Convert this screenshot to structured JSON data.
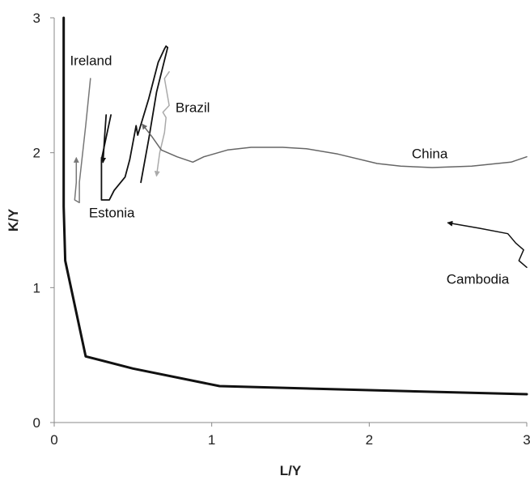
{
  "chart_data": {
    "type": "line",
    "xlabel": "L/Y",
    "ylabel": "K/Y",
    "xlim": [
      0,
      3
    ],
    "ylim": [
      0,
      3
    ],
    "x_ticks": [
      0,
      1,
      2,
      3
    ],
    "y_ticks": [
      0,
      1,
      2,
      3
    ],
    "grid": false,
    "legend": "none",
    "series": [
      {
        "name": "",
        "color": "#111111",
        "width": 3,
        "arrow": "none",
        "points": [
          [
            0.06,
            3.0
          ],
          [
            0.06,
            1.6
          ],
          [
            0.07,
            1.2
          ],
          [
            0.2,
            0.49
          ],
          [
            0.5,
            0.4
          ],
          [
            1.05,
            0.27
          ],
          [
            2.0,
            0.24
          ],
          [
            3.0,
            0.21
          ]
        ]
      },
      {
        "name": "Ireland",
        "color": "#777777",
        "width": 1.5,
        "arrow": "end",
        "points": [
          [
            0.23,
            2.55
          ],
          [
            0.2,
            2.2
          ],
          [
            0.16,
            1.78
          ],
          [
            0.16,
            1.63
          ],
          [
            0.13,
            1.65
          ],
          [
            0.14,
            1.78
          ],
          [
            0.14,
            1.96
          ]
        ]
      },
      {
        "name": "Estonia",
        "color": "#111111",
        "width": 1.8,
        "arrow": "none",
        "points": [
          [
            0.36,
            2.28
          ],
          [
            0.3,
            1.95
          ],
          [
            0.3,
            1.65
          ],
          [
            0.35,
            1.65
          ],
          [
            0.38,
            1.72
          ],
          [
            0.45,
            1.82
          ],
          [
            0.48,
            1.95
          ],
          [
            0.52,
            2.2
          ],
          [
            0.53,
            2.13
          ],
          [
            0.6,
            2.4
          ],
          [
            0.66,
            2.67
          ],
          [
            0.7,
            2.77
          ],
          [
            0.71,
            2.79
          ],
          [
            0.72,
            2.78
          ],
          [
            0.65,
            2.45
          ],
          [
            0.6,
            2.1
          ],
          [
            0.55,
            1.78
          ]
        ]
      },
      {
        "name": "",
        "color": "#111111",
        "width": 1.8,
        "arrow": "end",
        "points": [
          [
            0.33,
            2.28
          ],
          [
            0.32,
            2.12
          ],
          [
            0.31,
            1.93
          ]
        ]
      },
      {
        "name": "Brazil",
        "color": "#aaaaaa",
        "width": 1.5,
        "arrow": "end",
        "points": [
          [
            0.73,
            2.6
          ],
          [
            0.7,
            2.55
          ],
          [
            0.73,
            2.35
          ],
          [
            0.69,
            2.3
          ],
          [
            0.71,
            2.26
          ],
          [
            0.7,
            2.15
          ],
          [
            0.67,
            2.0
          ],
          [
            0.65,
            1.83
          ]
        ]
      },
      {
        "name": "China",
        "color": "#666666",
        "width": 1.5,
        "arrow": "end",
        "points": [
          [
            3.0,
            1.97
          ],
          [
            2.9,
            1.93
          ],
          [
            2.65,
            1.9
          ],
          [
            2.4,
            1.89
          ],
          [
            2.2,
            1.9
          ],
          [
            2.05,
            1.92
          ],
          [
            1.8,
            1.99
          ],
          [
            1.6,
            2.03
          ],
          [
            1.45,
            2.04
          ],
          [
            1.25,
            2.04
          ],
          [
            1.1,
            2.02
          ],
          [
            0.95,
            1.97
          ],
          [
            0.88,
            1.93
          ],
          [
            0.78,
            1.97
          ],
          [
            0.68,
            2.02
          ],
          [
            0.62,
            2.12
          ],
          [
            0.56,
            2.21
          ]
        ]
      },
      {
        "name": "Cambodia",
        "color": "#111111",
        "width": 1.5,
        "arrow": "end",
        "points": [
          [
            3.0,
            1.15
          ],
          [
            2.95,
            1.2
          ],
          [
            2.98,
            1.28
          ],
          [
            2.93,
            1.33
          ],
          [
            2.88,
            1.4
          ],
          [
            2.7,
            1.44
          ],
          [
            2.5,
            1.48
          ]
        ]
      }
    ],
    "annotations": [
      {
        "text": "Ireland",
        "x": 0.1,
        "y": 2.65
      },
      {
        "text": "Estonia",
        "x": 0.22,
        "y": 1.52
      },
      {
        "text": "Brazil",
        "x": 0.77,
        "y": 2.3
      },
      {
        "text": "China",
        "x": 2.27,
        "y": 1.96
      },
      {
        "text": "Cambodia",
        "x": 2.49,
        "y": 1.03
      }
    ]
  }
}
